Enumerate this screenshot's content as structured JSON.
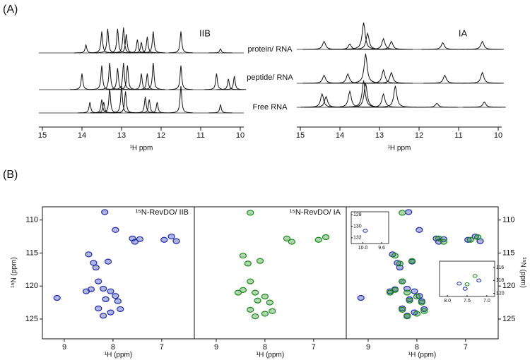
{
  "panel_a": {
    "label": "(A)",
    "xlabel": "¹H ppm",
    "trace_labels": [
      "protein/ RNA",
      "peptide/ RNA",
      "Free RNA"
    ],
    "plots": [
      {
        "title": "IIB",
        "xlim": [
          15,
          10
        ],
        "xticks": [
          15,
          14,
          13,
          12,
          11,
          10
        ],
        "traces": [
          {
            "peaks": [
              {
                "ppm": 13.9,
                "height": 0.3
              },
              {
                "ppm": 13.5,
                "height": 0.8
              },
              {
                "ppm": 13.35,
                "height": 0.9
              },
              {
                "ppm": 13.1,
                "height": 0.9
              },
              {
                "ppm": 12.95,
                "height": 0.95
              },
              {
                "ppm": 12.88,
                "height": 0.7
              },
              {
                "ppm": 12.6,
                "height": 0.5
              },
              {
                "ppm": 12.5,
                "height": 0.4
              },
              {
                "ppm": 12.35,
                "height": 0.6
              },
              {
                "ppm": 12.2,
                "height": 0.8
              },
              {
                "ppm": 11.5,
                "height": 0.8
              },
              {
                "ppm": 10.5,
                "height": 0.15
              }
            ]
          },
          {
            "peaks": [
              {
                "ppm": 14.0,
                "height": 0.6
              },
              {
                "ppm": 13.5,
                "height": 0.9
              },
              {
                "ppm": 13.3,
                "height": 1.0
              },
              {
                "ppm": 13.1,
                "height": 0.8
              },
              {
                "ppm": 12.95,
                "height": 1.0
              },
              {
                "ppm": 12.85,
                "height": 0.9
              },
              {
                "ppm": 12.5,
                "height": 0.6
              },
              {
                "ppm": 12.35,
                "height": 0.6
              },
              {
                "ppm": 12.2,
                "height": 1.0
              },
              {
                "ppm": 11.5,
                "height": 0.9
              },
              {
                "ppm": 10.6,
                "height": 0.6
              },
              {
                "ppm": 10.3,
                "height": 0.4
              },
              {
                "ppm": 10.15,
                "height": 0.5
              }
            ]
          },
          {
            "peaks": [
              {
                "ppm": 13.8,
                "height": 0.4
              },
              {
                "ppm": 13.5,
                "height": 0.5
              },
              {
                "ppm": 13.45,
                "height": 0.4
              },
              {
                "ppm": 13.3,
                "height": 0.9
              },
              {
                "ppm": 13.0,
                "height": 1.0
              },
              {
                "ppm": 12.9,
                "height": 0.8
              },
              {
                "ppm": 12.4,
                "height": 0.6
              },
              {
                "ppm": 12.3,
                "height": 0.5
              },
              {
                "ppm": 12.1,
                "height": 0.4
              },
              {
                "ppm": 11.5,
                "height": 1.0
              },
              {
                "ppm": 10.5,
                "height": 0.3
              }
            ]
          }
        ]
      },
      {
        "title": "IA",
        "xlim": [
          15,
          10
        ],
        "xticks": [
          15,
          14,
          13,
          12,
          11,
          10
        ],
        "traces": [
          {
            "peaks": [
              {
                "ppm": 14.4,
                "height": 0.3
              },
              {
                "ppm": 13.75,
                "height": 0.2
              },
              {
                "ppm": 13.4,
                "height": 1.0
              },
              {
                "ppm": 13.3,
                "height": 0.6
              },
              {
                "ppm": 12.9,
                "height": 0.4
              },
              {
                "ppm": 12.7,
                "height": 0.3
              },
              {
                "ppm": 11.4,
                "height": 0.25
              },
              {
                "ppm": 10.4,
                "height": 0.3
              }
            ]
          },
          {
            "peaks": [
              {
                "ppm": 14.4,
                "height": 0.3
              },
              {
                "ppm": 13.8,
                "height": 0.35
              },
              {
                "ppm": 13.35,
                "height": 1.1
              },
              {
                "ppm": 12.9,
                "height": 0.5
              },
              {
                "ppm": 12.7,
                "height": 0.4
              },
              {
                "ppm": 11.35,
                "height": 0.3
              },
              {
                "ppm": 10.4,
                "height": 0.4
              }
            ]
          },
          {
            "peaks": [
              {
                "ppm": 14.45,
                "height": 0.5
              },
              {
                "ppm": 14.35,
                "height": 0.4
              },
              {
                "ppm": 13.75,
                "height": 0.6
              },
              {
                "ppm": 13.4,
                "height": 1.0
              },
              {
                "ppm": 13.35,
                "height": 0.9
              },
              {
                "ppm": 12.9,
                "height": 0.5
              },
              {
                "ppm": 12.6,
                "height": 0.8
              },
              {
                "ppm": 11.55,
                "height": 0.15
              },
              {
                "ppm": 10.35,
                "height": 0.2
              }
            ]
          }
        ]
      }
    ]
  },
  "panel_b": {
    "label": "(B)",
    "xlabel": "¹H (ppm)",
    "ylabel": "¹⁵N (ppm)",
    "xlim": [
      9.45,
      6.33
    ],
    "xticks": [
      9,
      8,
      7
    ],
    "ylim": [
      108,
      128
    ],
    "yticks": [
      110,
      115,
      120,
      125
    ],
    "plots": [
      {
        "title": "¹⁵N-RevDO/ IIB",
        "color": "#1f2aa8",
        "x": [
          8.17,
          7.95,
          7.6,
          7.55,
          7.45,
          6.95,
          6.8,
          6.7,
          8.5,
          8.4,
          8.35,
          8.1,
          8.3,
          8.45,
          8.2,
          8.05,
          7.95,
          8.15,
          7.9,
          8.3,
          8.2,
          8.05,
          7.85,
          9.15,
          8.55
        ],
        "y": [
          108.8,
          111.5,
          112.8,
          113.3,
          112.9,
          113.0,
          112.5,
          113.2,
          115.2,
          116.5,
          117.2,
          116.3,
          119.3,
          120.5,
          120.4,
          120.8,
          121.5,
          122.0,
          122.3,
          123.4,
          124.5,
          124.0,
          123.5,
          121.8,
          120.8
        ]
      },
      {
        "title": "¹⁵N-RevDO/ IA",
        "color": "#1a8a1a",
        "x": [
          8.3,
          7.55,
          7.45,
          6.9,
          6.75,
          8.45,
          8.35,
          8.1,
          8.3,
          8.45,
          8.2,
          8.0,
          8.15,
          7.9,
          8.3,
          8.2,
          8.0,
          8.55,
          7.85
        ],
        "y": [
          108.9,
          112.8,
          113.3,
          113.0,
          112.6,
          115.4,
          116.6,
          116.2,
          119.3,
          120.6,
          121.0,
          121.6,
          122.2,
          122.5,
          123.6,
          124.6,
          124.2,
          121.0,
          123.8
        ]
      },
      {
        "insets": [
          {
            "xlim": [
              10.25,
              9.45
            ],
            "ylim": [
              127.5,
              133
            ],
            "xticks": [
              {
                "value": 10,
                "label": "10.0"
              },
              9.6
            ],
            "yticks": [
              128,
              130,
              132
            ],
            "x": [
              9.95
            ],
            "y": [
              130.8
            ]
          },
          {
            "xlim": [
              8.2,
              6.8
            ],
            "ylim": [
              115,
              120.5
            ],
            "xticks": [
              {
                "value": 8,
                "label": "8.0"
              },
              7.5,
              {
                "value": 7,
                "label": "7.0"
              }
            ],
            "yticks": [
              116,
              118,
              120
            ],
            "x": [
              7.7,
              7.5,
              7.55,
              7.3,
              7.2
            ],
            "y": [
              118.5,
              118.6,
              119.3,
              117.3,
              118.0
            ]
          }
        ]
      }
    ]
  }
}
